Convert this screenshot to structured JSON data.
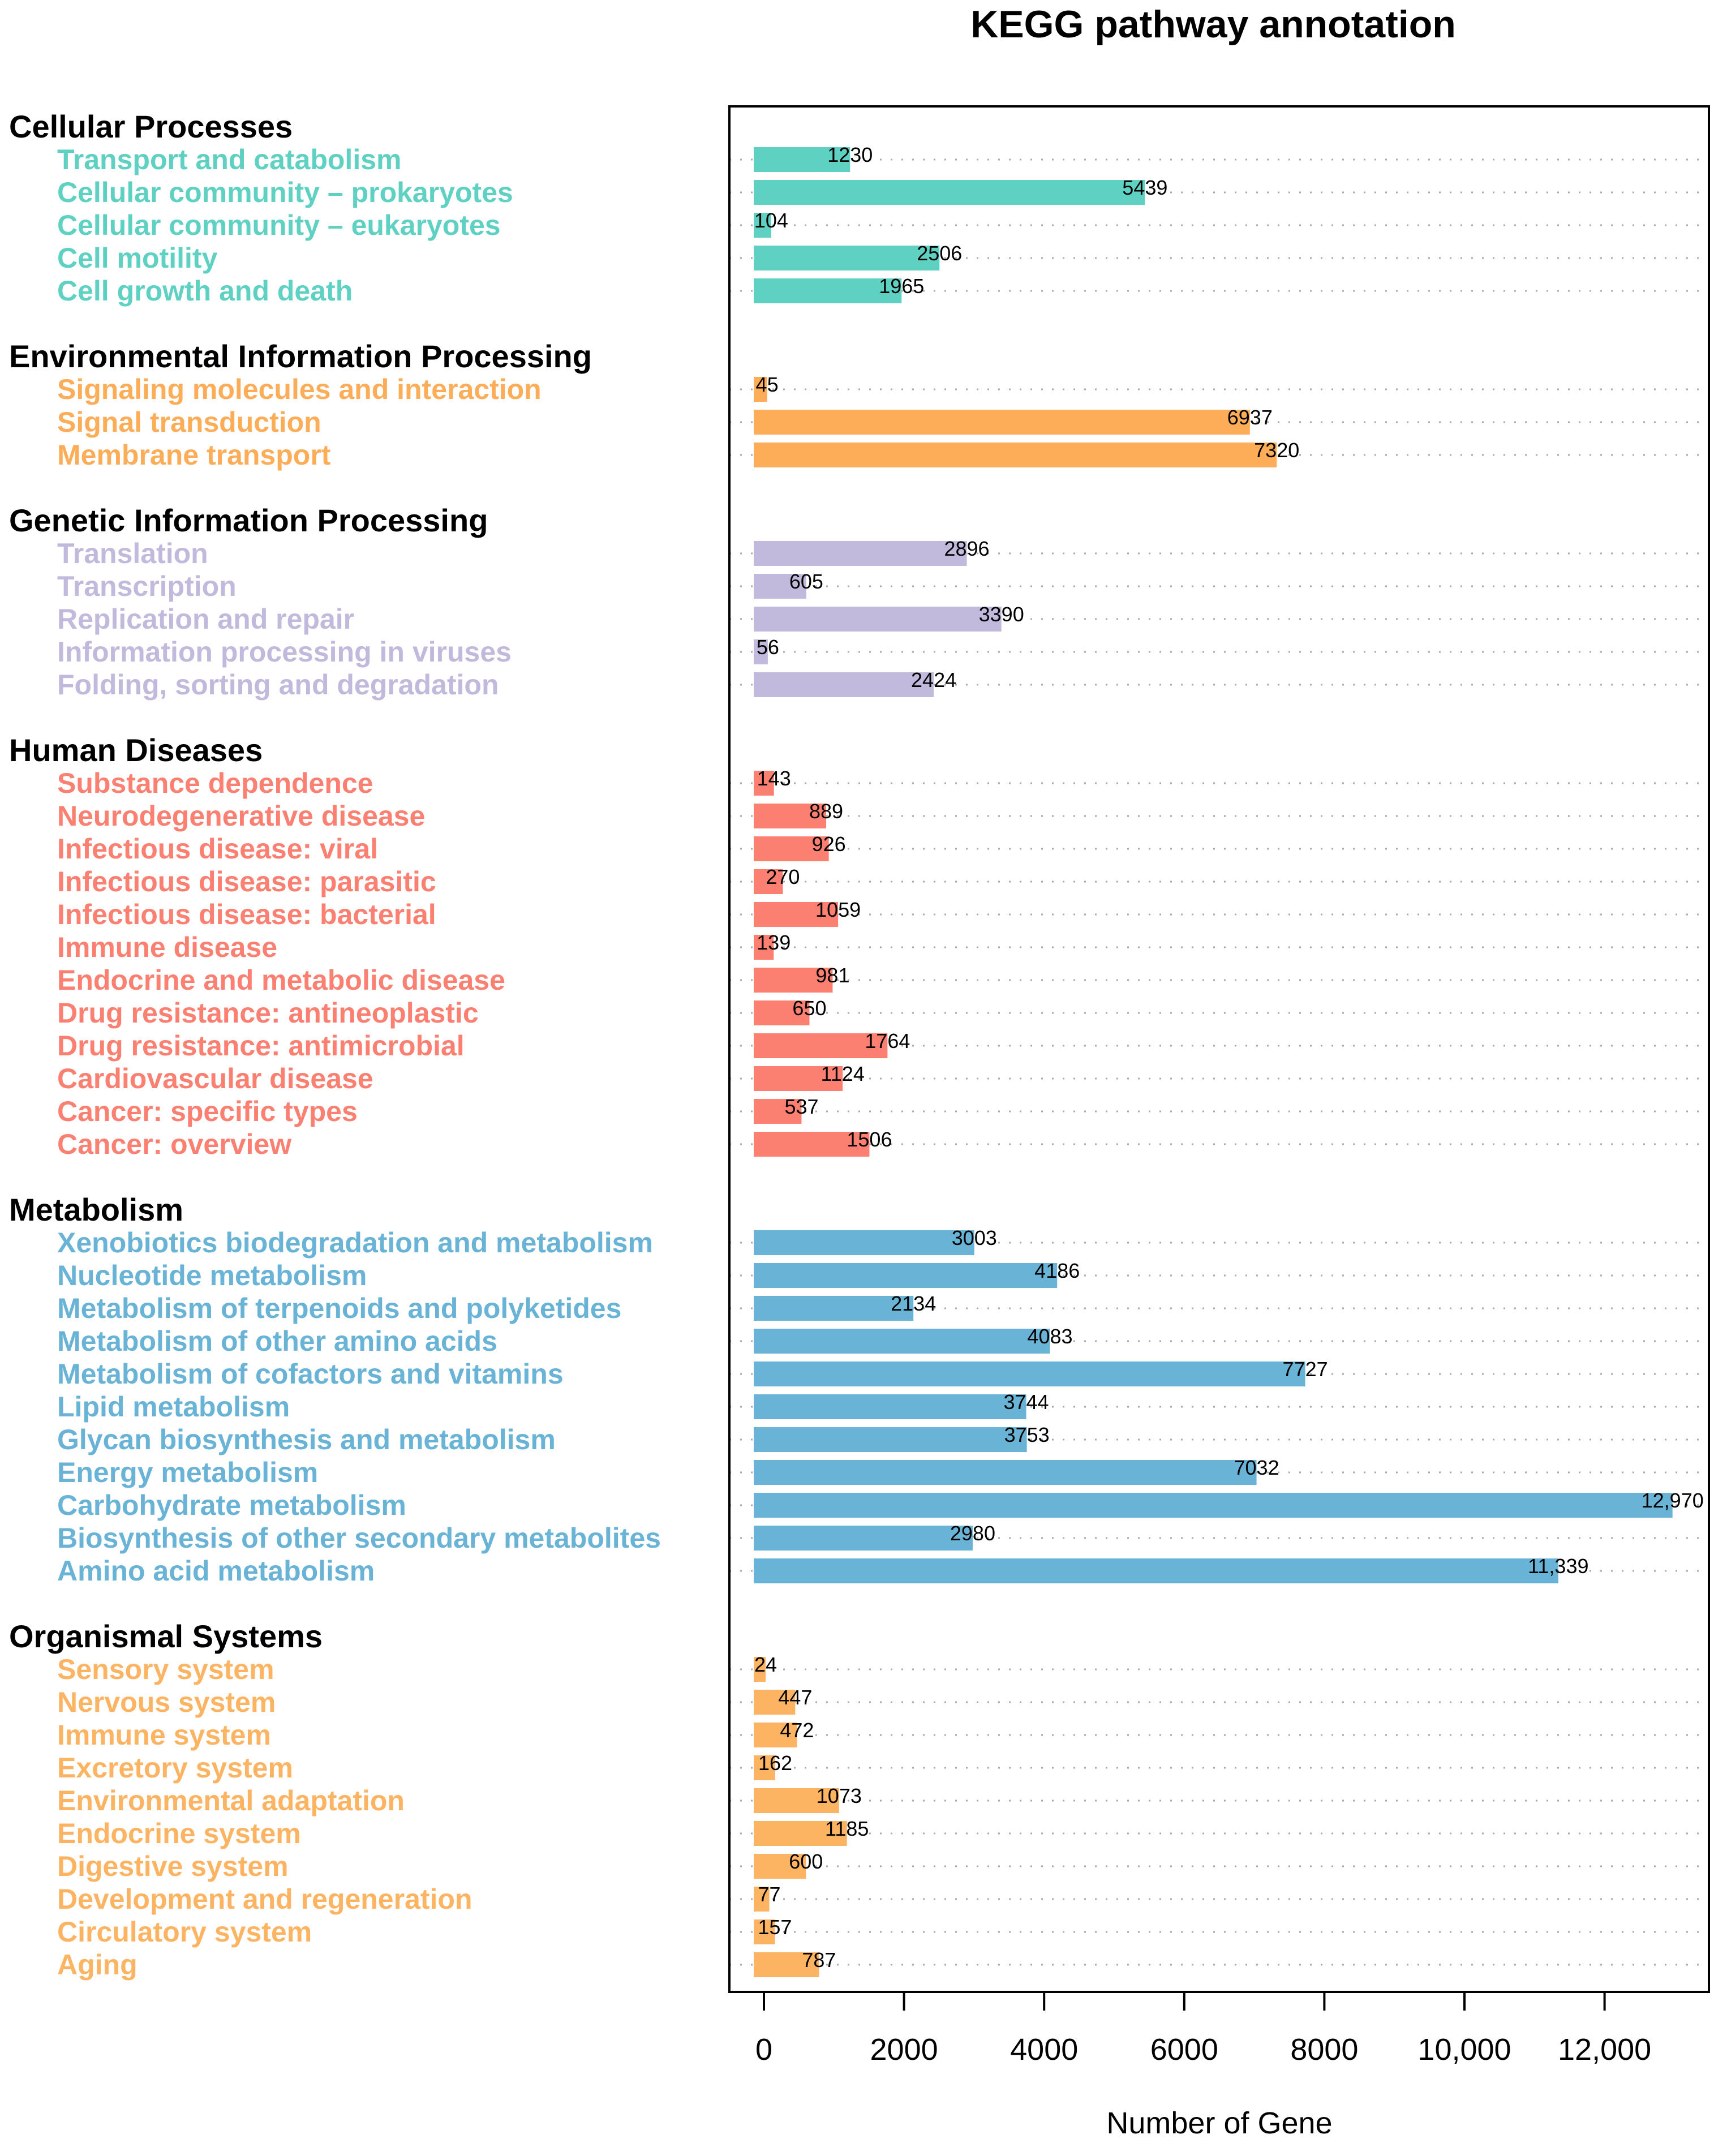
{
  "chart_data": {
    "type": "bar",
    "orientation": "horizontal",
    "title": "KEGG pathway annotation",
    "xlabel": "Number of Gene",
    "ylabel": "",
    "xlim": [
      0,
      13000
    ],
    "xticks": [
      0,
      2000,
      4000,
      6000,
      8000,
      10000,
      12000
    ],
    "xtick_labels": [
      "0",
      "2000",
      "4000",
      "6000",
      "8000",
      "10,000",
      "12,000"
    ],
    "grid": "dotted horizontal lines per row",
    "groups": [
      {
        "name": "Cellular Processes",
        "color": "#5ed1c2",
        "items": [
          {
            "label": "Transport and catabolism",
            "value": 1230,
            "value_label": "1230"
          },
          {
            "label": "Cellular community – prokaryotes",
            "value": 5439,
            "value_label": "5439"
          },
          {
            "label": "Cellular community – eukaryotes",
            "value": 104,
            "value_label": "104"
          },
          {
            "label": "Cell motility",
            "value": 2506,
            "value_label": "2506"
          },
          {
            "label": "Cell growth and death",
            "value": 1965,
            "value_label": "1965"
          }
        ]
      },
      {
        "name": "Environmental Information Processing",
        "color": "#fdac57",
        "items": [
          {
            "label": "Signaling molecules and interaction",
            "value": 45,
            "value_label": "45"
          },
          {
            "label": "Signal transduction",
            "value": 6937,
            "value_label": "6937"
          },
          {
            "label": "Membrane transport",
            "value": 7320,
            "value_label": "7320"
          }
        ]
      },
      {
        "name": "Genetic Information Processing",
        "color": "#c2badc",
        "items": [
          {
            "label": "Translation",
            "value": 2896,
            "value_label": "2896"
          },
          {
            "label": "Transcription",
            "value": 605,
            "value_label": "605"
          },
          {
            "label": "Replication and repair",
            "value": 3390,
            "value_label": "3390"
          },
          {
            "label": "Information processing in viruses",
            "value": 56,
            "value_label": "56"
          },
          {
            "label": "Folding, sorting and degradation",
            "value": 2424,
            "value_label": "2424"
          }
        ]
      },
      {
        "name": "Human Diseases",
        "color": "#fb8072",
        "items": [
          {
            "label": "Substance dependence",
            "value": 143,
            "value_label": "143"
          },
          {
            "label": "Neurodegenerative disease",
            "value": 889,
            "value_label": "889"
          },
          {
            "label": "Infectious disease: viral",
            "value": 926,
            "value_label": "926"
          },
          {
            "label": "Infectious disease: parasitic",
            "value": 270,
            "value_label": "270"
          },
          {
            "label": "Infectious disease: bacterial",
            "value": 1059,
            "value_label": "1059"
          },
          {
            "label": "Immune disease",
            "value": 139,
            "value_label": "139"
          },
          {
            "label": "Endocrine and metabolic disease",
            "value": 981,
            "value_label": "981"
          },
          {
            "label": "Drug resistance: antineoplastic",
            "value": 650,
            "value_label": "650"
          },
          {
            "label": "Drug resistance: antimicrobial",
            "value": 1764,
            "value_label": "1764"
          },
          {
            "label": "Cardiovascular disease",
            "value": 1124,
            "value_label": "1124"
          },
          {
            "label": "Cancer: specific types",
            "value": 537,
            "value_label": "537"
          },
          {
            "label": "Cancer: overview",
            "value": 1506,
            "value_label": "1506"
          }
        ]
      },
      {
        "name": "Metabolism",
        "color": "#69b3d6",
        "items": [
          {
            "label": "Xenobiotics biodegradation and metabolism",
            "value": 3003,
            "value_label": "3003"
          },
          {
            "label": "Nucleotide metabolism",
            "value": 4186,
            "value_label": "4186"
          },
          {
            "label": "Metabolism of terpenoids and polyketides",
            "value": 2134,
            "value_label": "2134"
          },
          {
            "label": "Metabolism of other amino acids",
            "value": 4083,
            "value_label": "4083"
          },
          {
            "label": "Metabolism of cofactors and vitamins",
            "value": 7727,
            "value_label": "7727"
          },
          {
            "label": "Lipid metabolism",
            "value": 3744,
            "value_label": "3744"
          },
          {
            "label": "Glycan biosynthesis and metabolism",
            "value": 3753,
            "value_label": "3753"
          },
          {
            "label": "Energy metabolism",
            "value": 7032,
            "value_label": "7032"
          },
          {
            "label": "Carbohydrate metabolism",
            "value": 12970,
            "value_label": "12,970"
          },
          {
            "label": "Biosynthesis of other secondary metabolites",
            "value": 2980,
            "value_label": "2980"
          },
          {
            "label": "Amino acid metabolism",
            "value": 11339,
            "value_label": "11,339"
          }
        ]
      },
      {
        "name": "Organismal Systems",
        "color": "#fdb462",
        "items": [
          {
            "label": "Sensory system",
            "value": 24,
            "value_label": "24"
          },
          {
            "label": "Nervous system",
            "value": 447,
            "value_label": "447"
          },
          {
            "label": "Immune system",
            "value": 472,
            "value_label": "472"
          },
          {
            "label": "Excretory system",
            "value": 162,
            "value_label": "162"
          },
          {
            "label": "Environmental adaptation",
            "value": 1073,
            "value_label": "1073"
          },
          {
            "label": "Endocrine system",
            "value": 1185,
            "value_label": "1185"
          },
          {
            "label": "Digestive system",
            "value": 600,
            "value_label": "600"
          },
          {
            "label": "Development and regeneration",
            "value": 77,
            "value_label": "77"
          },
          {
            "label": "Circulatory system",
            "value": 157,
            "value_label": "157"
          },
          {
            "label": "Aging",
            "value": 787,
            "value_label": "787"
          }
        ]
      }
    ]
  }
}
